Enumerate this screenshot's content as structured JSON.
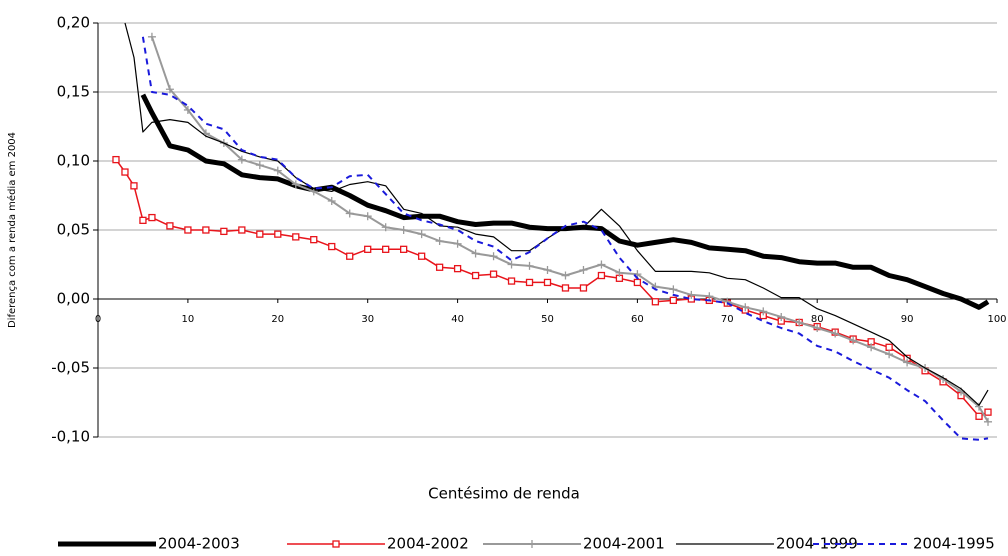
{
  "chart_data": {
    "type": "line",
    "x_label": "Centésimo de renda",
    "y_label": "Diferença com a renda média em 2004",
    "x": [
      2,
      3,
      4,
      5,
      6,
      8,
      10,
      12,
      14,
      16,
      18,
      20,
      22,
      24,
      26,
      28,
      30,
      32,
      34,
      36,
      38,
      40,
      42,
      44,
      46,
      48,
      50,
      52,
      54,
      56,
      58,
      60,
      62,
      64,
      66,
      68,
      70,
      72,
      74,
      76,
      78,
      80,
      82,
      84,
      86,
      88,
      90,
      92,
      94,
      96,
      98,
      99
    ],
    "series": [
      {
        "name": "2004-2003",
        "color": "#000000",
        "line_width": 5,
        "marker": "none",
        "dash": false,
        "values": [
          null,
          null,
          null,
          0.148,
          0.135,
          0.111,
          0.108,
          0.1,
          0.098,
          0.09,
          0.088,
          0.087,
          0.082,
          0.079,
          0.081,
          0.075,
          0.068,
          0.064,
          0.059,
          0.06,
          0.06,
          0.056,
          0.054,
          0.055,
          0.055,
          0.052,
          0.051,
          0.051,
          0.052,
          0.051,
          0.042,
          0.039,
          0.041,
          0.043,
          0.041,
          0.037,
          0.036,
          0.035,
          0.031,
          0.03,
          0.027,
          0.026,
          0.026,
          0.023,
          0.023,
          0.017,
          0.014,
          0.009,
          0.004,
          0.0,
          -0.006,
          -0.002
        ]
      },
      {
        "name": "2004-2002",
        "color": "#e8141b",
        "line_width": 1.5,
        "marker": "square",
        "dash": false,
        "values": [
          0.101,
          0.092,
          0.082,
          0.057,
          0.059,
          0.053,
          0.05,
          0.05,
          0.049,
          0.05,
          0.047,
          0.047,
          0.045,
          0.043,
          0.038,
          0.031,
          0.036,
          0.036,
          0.036,
          0.031,
          0.023,
          0.022,
          0.017,
          0.018,
          0.013,
          0.012,
          0.012,
          0.008,
          0.008,
          0.017,
          0.015,
          0.012,
          -0.002,
          -0.001,
          0.0,
          -0.001,
          -0.003,
          -0.008,
          -0.012,
          -0.016,
          -0.017,
          -0.02,
          -0.024,
          -0.029,
          -0.031,
          -0.035,
          -0.043,
          -0.052,
          -0.06,
          -0.07,
          -0.085,
          -0.082
        ]
      },
      {
        "name": "2004-2001",
        "color": "#999999",
        "line_width": 2,
        "marker": "plus",
        "dash": false,
        "values": [
          null,
          null,
          null,
          null,
          0.19,
          0.152,
          0.137,
          0.12,
          0.113,
          0.101,
          0.097,
          0.093,
          0.083,
          0.078,
          0.071,
          0.062,
          0.06,
          0.052,
          0.05,
          0.047,
          0.042,
          0.04,
          0.033,
          0.031,
          0.025,
          0.024,
          0.021,
          0.017,
          0.021,
          0.025,
          0.019,
          0.018,
          0.009,
          0.007,
          0.003,
          0.002,
          -0.002,
          -0.006,
          -0.009,
          -0.013,
          -0.017,
          -0.021,
          -0.025,
          -0.03,
          -0.035,
          -0.04,
          -0.046,
          -0.05,
          -0.058,
          -0.067,
          -0.078,
          -0.089
        ]
      },
      {
        "name": "2004-1999",
        "color": "#000000",
        "line_width": 1.2,
        "marker": "none",
        "dash": false,
        "values": [
          null,
          0.2,
          0.175,
          0.121,
          0.128,
          0.13,
          0.128,
          0.118,
          0.113,
          0.107,
          0.103,
          0.1,
          0.088,
          0.08,
          0.078,
          0.083,
          0.085,
          0.082,
          0.065,
          0.062,
          0.053,
          0.052,
          0.047,
          0.045,
          0.035,
          0.035,
          0.044,
          0.052,
          0.052,
          0.065,
          0.053,
          0.035,
          0.02,
          0.02,
          0.02,
          0.019,
          0.015,
          0.014,
          0.008,
          0.001,
          0.001,
          -0.007,
          -0.012,
          -0.018,
          -0.024,
          -0.03,
          -0.042,
          -0.05,
          -0.057,
          -0.065,
          -0.077,
          -0.066
        ]
      },
      {
        "name": "2004-1995",
        "color": "#1a1adb",
        "line_width": 2,
        "marker": "none",
        "dash": true,
        "values": [
          null,
          null,
          null,
          0.19,
          0.15,
          0.148,
          0.14,
          0.127,
          0.123,
          0.108,
          0.103,
          0.101,
          0.088,
          0.08,
          0.081,
          0.089,
          0.09,
          0.076,
          0.062,
          0.057,
          0.054,
          0.05,
          0.042,
          0.038,
          0.028,
          0.034,
          0.044,
          0.053,
          0.056,
          0.05,
          0.03,
          0.015,
          0.007,
          0.003,
          0.0,
          -0.001,
          -0.003,
          -0.01,
          -0.016,
          -0.021,
          -0.025,
          -0.034,
          -0.038,
          -0.045,
          -0.051,
          -0.057,
          -0.066,
          -0.074,
          -0.088,
          -0.101,
          -0.102,
          -0.101
        ]
      }
    ],
    "xlim": [
      0,
      100
    ],
    "xticks": [
      0,
      10,
      20,
      30,
      40,
      50,
      60,
      70,
      80,
      90,
      100
    ],
    "ylim": [
      -0.1,
      0.2
    ],
    "yticks": [
      {
        "value": -0.1,
        "label": "-0,10"
      },
      {
        "value": -0.05,
        "label": "-0,05"
      },
      {
        "value": 0,
        "label": "0,00"
      },
      {
        "value": 0.05,
        "label": "0,05"
      },
      {
        "value": 0.1,
        "label": "0,10"
      },
      {
        "value": 0.15,
        "label": "0,15"
      },
      {
        "value": 0.2,
        "label": "0,20"
      }
    ],
    "grid": true
  }
}
